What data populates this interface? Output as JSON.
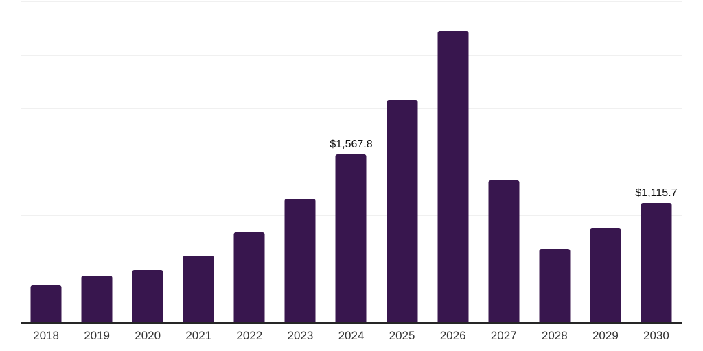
{
  "chart_data": {
    "type": "bar",
    "title": "",
    "xlabel": "",
    "ylabel": "",
    "categories": [
      "2018",
      "2019",
      "2020",
      "2021",
      "2022",
      "2023",
      "2024",
      "2025",
      "2026",
      "2027",
      "2028",
      "2029",
      "2030"
    ],
    "values": [
      345,
      435,
      487,
      622,
      838,
      1152,
      1567.8,
      2080,
      2727,
      1325,
      685,
      877,
      1115.7
    ],
    "data_labels": [
      {
        "category": "2024",
        "text": "$1,567.8"
      },
      {
        "category": "2030",
        "text": "$1,115.7"
      }
    ],
    "ylim": [
      0,
      3000
    ],
    "gridline_step": 500,
    "grid": "horizontal-only",
    "y_tick_labels_visible": false,
    "legend_position": "none"
  },
  "colors": {
    "bar": "#38164e",
    "gridline": "#f0f0f0",
    "axis_line": "#262626",
    "x_label_text": "#333333",
    "data_label_text": "#111111",
    "background": "#ffffff"
  }
}
